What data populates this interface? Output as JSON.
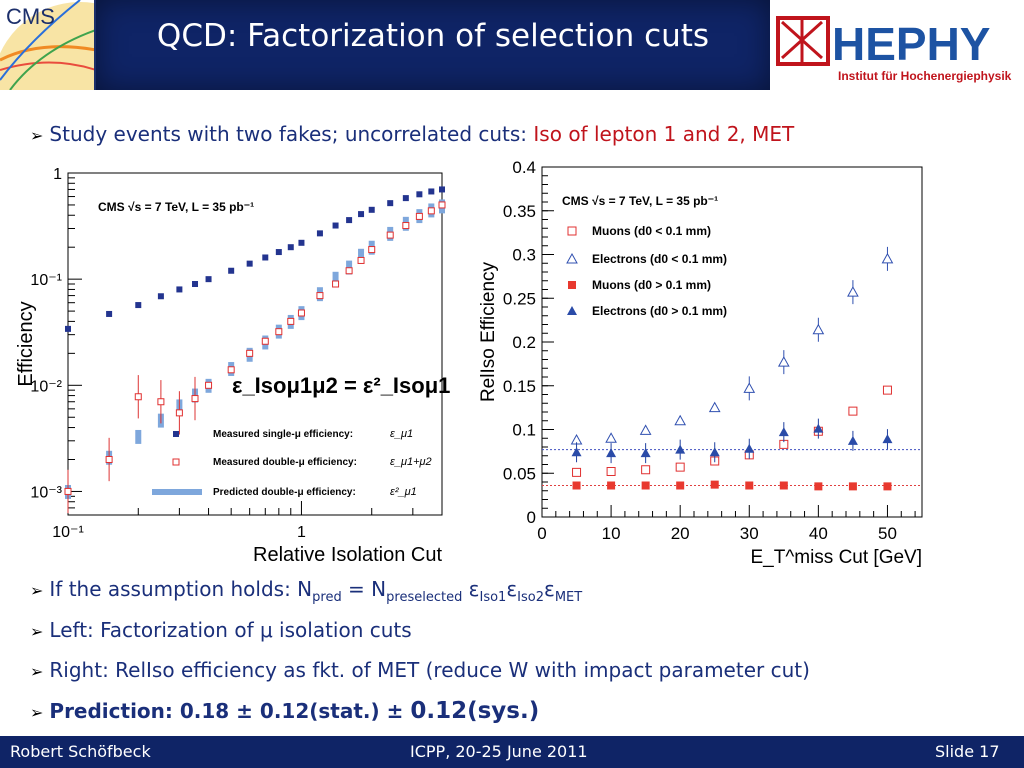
{
  "header": {
    "title": "QCD: Factorization of selection cuts",
    "cms_logo_text": "CMS",
    "hephy_logo_text": "HEPHY",
    "hephy_subtitle": "Institut für Hochenergiephysik"
  },
  "bullets": {
    "b1_text": "Study events with two fakes; uncorrelated cuts: ",
    "b1_red": "Iso of lepton 1 and 2, MET",
    "b2_prefix": "If the assumption holds: N",
    "b2_sub_pred": "pred",
    "b2_eq": " = N",
    "b2_sub_presel": "preselected",
    "b2_eps": " ε",
    "b2_sub_iso1": "Iso1",
    "b2_eps2": "ε",
    "b2_sub_iso2": "Iso2",
    "b2_eps3": "ε",
    "b2_sub_met": "MET",
    "b3": "Left: Factorization of μ isolation cuts",
    "b4": "Right: RelIso efficiency as fkt. of MET (reduce W with impact parameter cut)",
    "b5_bold": "Prediction: 0.18 ± 0.12(stat.) ± ",
    "b5_big": "0.12(sys.)"
  },
  "footer": {
    "author": "Robert Schöfbeck",
    "conference": "ICPP, 20-25 June 2011",
    "slide": "Slide 17"
  },
  "chart_data": [
    {
      "type": "scatter",
      "xlabel": "Relative Isolation Cut",
      "ylabel": "Efficiency",
      "xscale": "log",
      "yscale": "log",
      "xlim": [
        0.1,
        4
      ],
      "ylim": [
        0.0006,
        1
      ],
      "x_tick_labels": [
        "10⁻¹",
        "1"
      ],
      "y_tick_labels": [
        "10⁻³",
        "10⁻²",
        "10⁻¹",
        "1"
      ],
      "header_text": "CMS  √s = 7 TeV,  L = 35 pb⁻¹",
      "formula_text": "ε_Isoμ1μ2 = ε²_Isoμ1",
      "legend": [
        {
          "label": "Measured single-μ efficiency:",
          "symbol": "ε_μ1"
        },
        {
          "label": "Measured double-μ efficiency:",
          "symbol": "ε_μ1+μ2"
        },
        {
          "label": "Predicted double-μ  efficiency:",
          "symbol": "ε²_μ1"
        }
      ],
      "series": [
        {
          "name": "Measured single-μ efficiency",
          "x": [
            0.1,
            0.15,
            0.2,
            0.25,
            0.3,
            0.35,
            0.4,
            0.5,
            0.6,
            0.7,
            0.8,
            0.9,
            1.0,
            1.2,
            1.4,
            1.6,
            1.8,
            2.0,
            2.4,
            2.8,
            3.2,
            3.6,
            4.0
          ],
          "y": [
            0.034,
            0.047,
            0.057,
            0.069,
            0.08,
            0.09,
            0.1,
            0.12,
            0.14,
            0.16,
            0.18,
            0.2,
            0.22,
            0.27,
            0.32,
            0.36,
            0.41,
            0.45,
            0.52,
            0.58,
            0.63,
            0.67,
            0.7
          ]
        },
        {
          "name": "Measured double-μ efficiency",
          "x": [
            0.1,
            0.15,
            0.2,
            0.25,
            0.3,
            0.35,
            0.4,
            0.5,
            0.6,
            0.7,
            0.8,
            0.9,
            1.0,
            1.2,
            1.4,
            1.6,
            1.8,
            2.0,
            2.4,
            2.8,
            3.2,
            3.6,
            4.0
          ],
          "y": [
            0.001,
            0.002,
            0.0078,
            0.007,
            0.0055,
            0.0075,
            0.01,
            0.014,
            0.02,
            0.026,
            0.032,
            0.04,
            0.048,
            0.07,
            0.09,
            0.12,
            0.15,
            0.19,
            0.26,
            0.32,
            0.39,
            0.44,
            0.5
          ]
        },
        {
          "name": "Predicted double-μ efficiency",
          "x": [
            0.1,
            0.15,
            0.2,
            0.25,
            0.3,
            0.35,
            0.4,
            0.5,
            0.6,
            0.7,
            0.8,
            0.9,
            1.0,
            1.2,
            1.4,
            1.6,
            1.8,
            2.0,
            2.4,
            2.8,
            3.2,
            3.6,
            4.0
          ],
          "y": [
            0.001,
            0.0021,
            0.0033,
            0.0047,
            0.0064,
            0.0081,
            0.01,
            0.0144,
            0.0196,
            0.0256,
            0.0324,
            0.04,
            0.0484,
            0.073,
            0.102,
            0.13,
            0.168,
            0.2,
            0.27,
            0.336,
            0.397,
            0.449,
            0.49
          ]
        }
      ]
    },
    {
      "type": "scatter",
      "xlabel": "E_T^miss Cut [GeV]",
      "ylabel": "RelIso Efficiency",
      "xlim": [
        0,
        55
      ],
      "ylim": [
        0,
        0.4
      ],
      "x_ticks": [
        0,
        10,
        20,
        30,
        40,
        50
      ],
      "y_ticks": [
        0,
        0.05,
        0.1,
        0.15,
        0.2,
        0.25,
        0.3,
        0.35,
        0.4
      ],
      "header_text": "CMS  √s = 7 TeV,  L = 35 pb⁻¹",
      "legend_labels": [
        "Muons (d0 < 0.1 mm)",
        "Electrons (d0 < 0.1 mm)",
        "Muons (d0 > 0.1 mm)",
        "Electrons (d0 > 0.1 mm)"
      ],
      "series": [
        {
          "name": "Muons (d0 < 0.1 mm)",
          "x": [
            5,
            10,
            15,
            20,
            25,
            30,
            35,
            40,
            45,
            50
          ],
          "y": [
            0.051,
            0.052,
            0.054,
            0.057,
            0.064,
            0.071,
            0.083,
            0.098,
            0.121,
            0.145
          ]
        },
        {
          "name": "Electrons (d0 < 0.1 mm)",
          "x": [
            5,
            10,
            15,
            20,
            25,
            30,
            35,
            40,
            45,
            50
          ],
          "y": [
            0.088,
            0.09,
            0.099,
            0.11,
            0.125,
            0.147,
            0.177,
            0.214,
            0.257,
            0.295
          ]
        },
        {
          "name": "Muons (d0 > 0.1 mm)",
          "x": [
            5,
            10,
            15,
            20,
            25,
            30,
            35,
            40,
            45,
            50
          ],
          "y": [
            0.036,
            0.036,
            0.036,
            0.036,
            0.037,
            0.036,
            0.036,
            0.035,
            0.035,
            0.035
          ]
        },
        {
          "name": "Electrons (d0 > 0.1 mm)",
          "x": [
            5,
            10,
            15,
            20,
            25,
            30,
            35,
            40,
            45,
            50
          ],
          "y": [
            0.074,
            0.073,
            0.073,
            0.077,
            0.074,
            0.078,
            0.097,
            0.101,
            0.087,
            0.089
          ]
        }
      ],
      "reference_lines": [
        0.077,
        0.036
      ]
    }
  ]
}
